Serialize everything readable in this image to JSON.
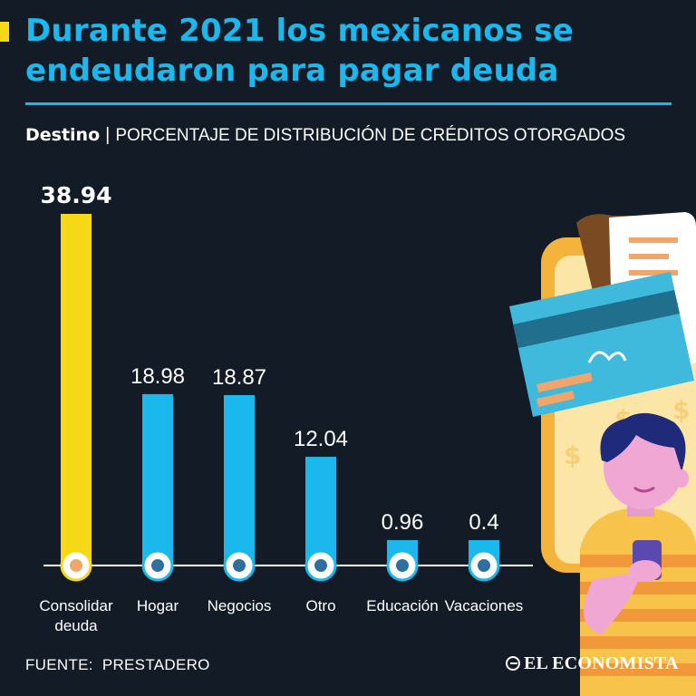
{
  "header": {
    "title_line1": "Durante 2021 los mexicanos se",
    "title_line2": "endeudaron para pagar deuda",
    "subtitle_bold": "Destino",
    "subtitle_sep": "|",
    "subtitle_rest": "PORCENTAJE DE DISTRIBUCIÓN DE CRÉDITOS OTORGADOS"
  },
  "chart_data": {
    "type": "bar",
    "title": "Durante 2021 los mexicanos se endeudaron para pagar deuda",
    "subtitle": "Destino | PORCENTAJE DE DISTRIBUCIÓN DE CRÉDITOS OTORGADOS",
    "categories": [
      "Consolidar deuda",
      "Hogar",
      "Negocios",
      "Otro",
      "Educación",
      "Vacaciones"
    ],
    "category_lines": [
      [
        "Consolidar",
        "deuda"
      ],
      [
        "Hogar"
      ],
      [
        "Negocios"
      ],
      [
        "Otro"
      ],
      [
        "Educación"
      ],
      [
        "Vacaciones"
      ]
    ],
    "values": [
      38.94,
      18.98,
      18.87,
      12.04,
      0.96,
      0.4
    ],
    "value_labels": [
      "38.94",
      "18.98",
      "18.87",
      "12.04",
      "0.96",
      "0.4"
    ],
    "highlight_index": 0,
    "ylim": [
      0,
      38.94
    ],
    "xlabel": "",
    "ylabel": "",
    "grid": false,
    "icons": [
      "debt-hand-icon",
      "house-icon",
      "business-icon",
      "card-icon",
      "graduation-icon",
      "travel-icon"
    ]
  },
  "colors": {
    "background": "#131b26",
    "bar": "#1ab8ec",
    "highlight": "#f6d816",
    "title": "#1ab8ec",
    "axis": "#ffffff"
  },
  "footer": {
    "source_label": "FUENTE:",
    "source_value": "PRESTADERO",
    "brand": "EL ECONOMISTA"
  }
}
